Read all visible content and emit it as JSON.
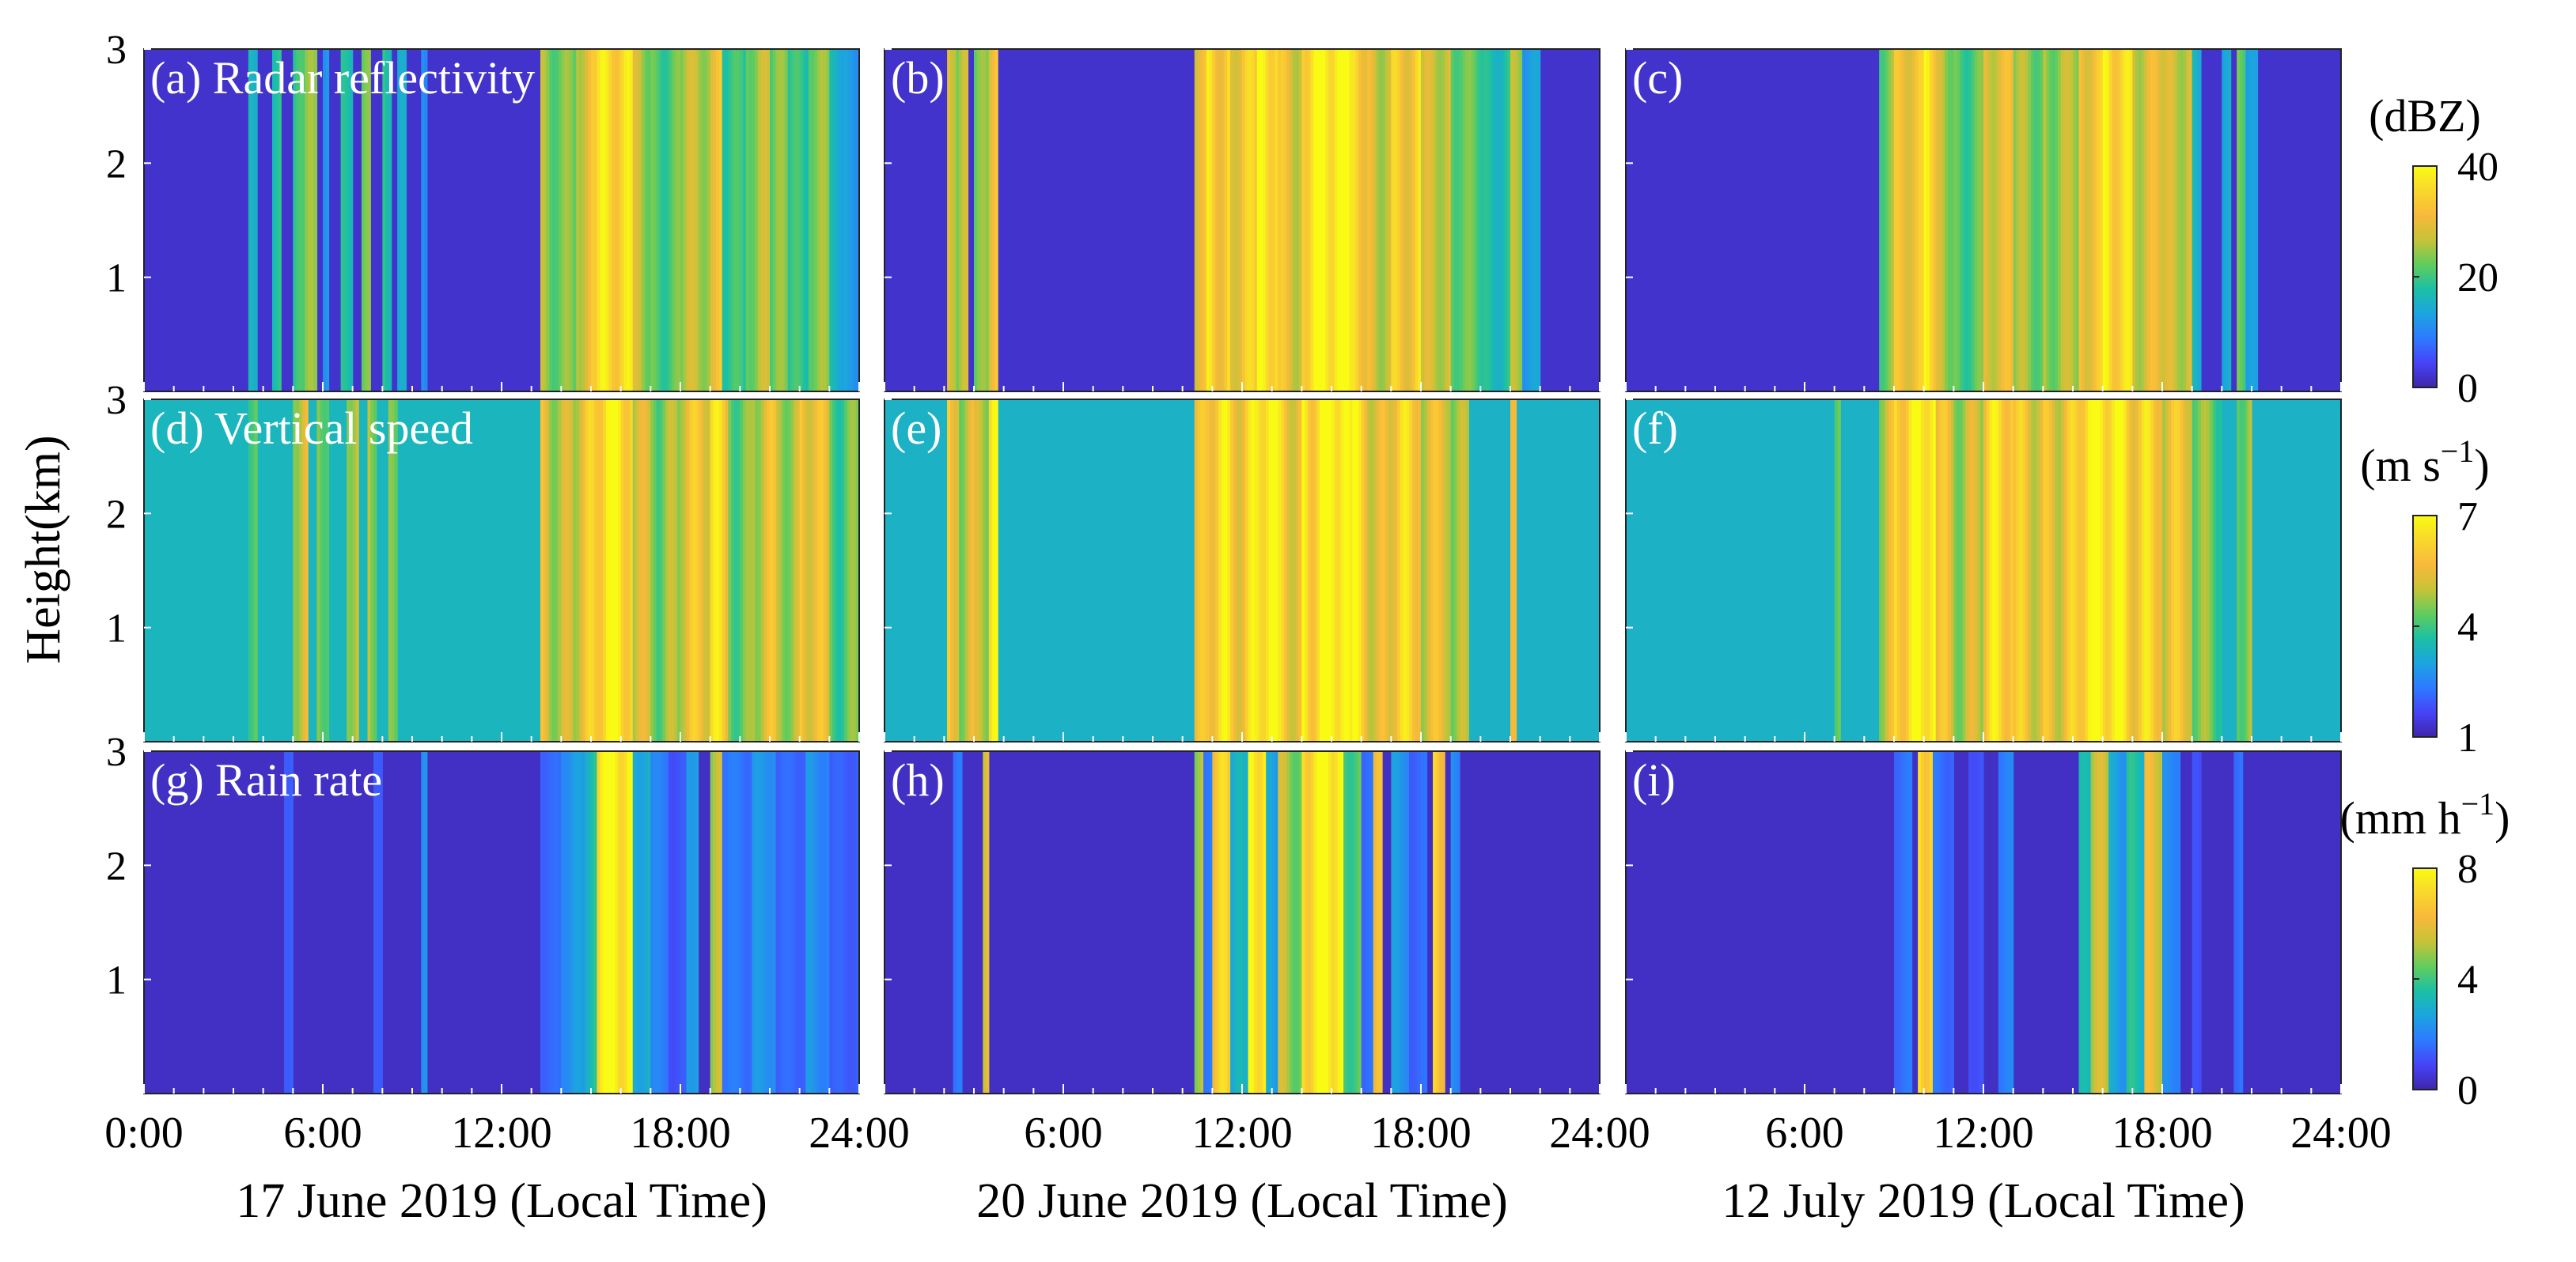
{
  "figure": {
    "ylabel": "Height(km)",
    "x_tick_labels_first": [
      "0:00",
      "6:00",
      "12:00",
      "18:00",
      "24:00"
    ],
    "x_tick_labels_next": [
      "6:00",
      "12:00",
      "18:00",
      "24:00"
    ],
    "column_titles": [
      "17 June 2019 (Local Time)",
      "20 June 2019 (Local Time)",
      "12 July 2019 (Local Time)"
    ],
    "y_ticks": [
      1,
      2,
      3
    ],
    "colorbars": [
      {
        "unit": "(dBZ)",
        "ticks": [
          0,
          20,
          40
        ],
        "range": [
          0,
          40
        ]
      },
      {
        "unit": "(m s",
        "unit_exp": "−1",
        "unit_close": ")",
        "ticks": [
          1,
          4,
          7
        ],
        "range": [
          1,
          7
        ]
      },
      {
        "unit": "(mm h",
        "unit_exp": "−1",
        "unit_close": ")",
        "ticks": [
          0,
          4,
          8
        ],
        "range": [
          0,
          8
        ]
      }
    ],
    "colormap": [
      "#3e26a8",
      "#4743f8",
      "#2d7aff",
      "#1ca4e0",
      "#1bc0a5",
      "#61cc5d",
      "#c6c338",
      "#f8b93b",
      "#f9d72c",
      "#f9fb14"
    ]
  },
  "chart_data": [
    {
      "panel": "a",
      "label": "(a) Radar reflectivity",
      "type": "heatmap",
      "variable": "Radar reflectivity",
      "units": "dBZ",
      "date": "17 June 2019",
      "x": "time (h, local)",
      "xlim": [
        0,
        24
      ],
      "ylim": [
        0,
        3
      ],
      "clim": [
        0,
        40
      ],
      "background": 2,
      "cell_hours": 0.1,
      "bands": [
        [
          3.5,
          3.8,
          14
        ],
        [
          4.3,
          4.6,
          18
        ],
        [
          5.0,
          5.4,
          20
        ],
        [
          5.4,
          5.8,
          24
        ],
        [
          6.0,
          6.2,
          12
        ],
        [
          6.6,
          7.0,
          16
        ],
        [
          7.3,
          7.6,
          22
        ],
        [
          8.0,
          8.3,
          20
        ],
        [
          8.5,
          8.8,
          14
        ],
        [
          9.3,
          9.5,
          10
        ],
        [
          13.3,
          14.5,
          24
        ],
        [
          14.5,
          15.2,
          30
        ],
        [
          15.2,
          16.4,
          34
        ],
        [
          16.4,
          17.0,
          26
        ],
        [
          17.0,
          18.0,
          22
        ],
        [
          18.0,
          19.0,
          25
        ],
        [
          19.0,
          19.4,
          30
        ],
        [
          19.4,
          20.2,
          20
        ],
        [
          20.2,
          21.0,
          26
        ],
        [
          21.0,
          21.6,
          22
        ],
        [
          21.6,
          22.3,
          18
        ],
        [
          22.3,
          23.0,
          24
        ],
        [
          23.0,
          23.6,
          16
        ],
        [
          23.6,
          24.0,
          12
        ]
      ]
    },
    {
      "panel": "b",
      "label": "(b)",
      "type": "heatmap",
      "variable": "Radar reflectivity",
      "units": "dBZ",
      "date": "20 June 2019",
      "x": "time (h, local)",
      "xlim": [
        0,
        24
      ],
      "ylim": [
        0,
        3
      ],
      "clim": [
        0,
        40
      ],
      "background": 2,
      "cell_hours": 0.1,
      "bands": [
        [
          2.1,
          2.4,
          32
        ],
        [
          2.4,
          2.8,
          26
        ],
        [
          3.0,
          3.5,
          22
        ],
        [
          3.5,
          3.8,
          30
        ],
        [
          10.4,
          10.8,
          30
        ],
        [
          10.8,
          11.6,
          36
        ],
        [
          11.6,
          12.5,
          32
        ],
        [
          12.5,
          13.2,
          36
        ],
        [
          13.2,
          14.0,
          30
        ],
        [
          14.0,
          15.6,
          40
        ],
        [
          15.6,
          16.2,
          32
        ],
        [
          16.2,
          17.0,
          28
        ],
        [
          17.0,
          18.0,
          34
        ],
        [
          18.0,
          19.0,
          26
        ],
        [
          19.0,
          20.0,
          22
        ],
        [
          20.0,
          21.0,
          18
        ],
        [
          21.0,
          21.4,
          24
        ],
        [
          21.4,
          22.0,
          12
        ]
      ]
    },
    {
      "panel": "c",
      "label": "(c)",
      "type": "heatmap",
      "variable": "Radar reflectivity",
      "units": "dBZ",
      "date": "12 July 2019",
      "x": "time (h, local)",
      "xlim": [
        0,
        24
      ],
      "ylim": [
        0,
        3
      ],
      "clim": [
        0,
        40
      ],
      "background": 2,
      "cell_hours": 0.1,
      "bands": [
        [
          8.5,
          9.0,
          24
        ],
        [
          9.0,
          10.0,
          30
        ],
        [
          10.0,
          10.4,
          36
        ],
        [
          10.4,
          11.0,
          26
        ],
        [
          11.0,
          12.0,
          22
        ],
        [
          12.0,
          13.0,
          28
        ],
        [
          13.0,
          14.0,
          24
        ],
        [
          14.0,
          15.2,
          26
        ],
        [
          15.2,
          16.0,
          30
        ],
        [
          16.0,
          17.0,
          36
        ],
        [
          17.0,
          18.0,
          30
        ],
        [
          18.0,
          19.0,
          26
        ],
        [
          19.0,
          19.3,
          14
        ],
        [
          20.0,
          20.3,
          16
        ],
        [
          20.5,
          20.8,
          22
        ],
        [
          20.8,
          21.2,
          12
        ]
      ]
    },
    {
      "panel": "d",
      "label": "(d) Vertical speed",
      "type": "heatmap",
      "variable": "Vertical speed",
      "units": "m s−1",
      "date": "17 June 2019",
      "x": "time (h, local)",
      "xlim": [
        0,
        24
      ],
      "ylim": [
        0,
        3
      ],
      "clim": [
        1,
        7
      ],
      "background": 3.4,
      "cell_hours": 0.1,
      "bands": [
        [
          3.5,
          3.8,
          4.2
        ],
        [
          5.0,
          5.5,
          5.5
        ],
        [
          5.8,
          6.2,
          4.6
        ],
        [
          6.8,
          7.2,
          4.8
        ],
        [
          7.5,
          7.8,
          5.0
        ],
        [
          8.2,
          8.5,
          4.4
        ],
        [
          13.3,
          14.5,
          5.2
        ],
        [
          14.5,
          15.2,
          5.8
        ],
        [
          15.2,
          16.4,
          6.4
        ],
        [
          16.4,
          17.2,
          5.2
        ],
        [
          17.2,
          18.0,
          4.8
        ],
        [
          18.0,
          19.0,
          5.4
        ],
        [
          19.0,
          19.6,
          6.0
        ],
        [
          19.6,
          20.4,
          4.6
        ],
        [
          20.4,
          21.2,
          5.4
        ],
        [
          21.2,
          22.0,
          4.6
        ],
        [
          22.0,
          23.0,
          5.6
        ],
        [
          23.0,
          24.0,
          4.4
        ]
      ]
    },
    {
      "panel": "e",
      "label": "(e)",
      "type": "heatmap",
      "variable": "Vertical speed",
      "units": "m s−1",
      "date": "20 June 2019",
      "x": "time (h, local)",
      "xlim": [
        0,
        24
      ],
      "ylim": [
        0,
        3
      ],
      "clim": [
        1,
        7
      ],
      "background": 3.3,
      "cell_hours": 0.1,
      "bands": [
        [
          2.1,
          2.5,
          6.4
        ],
        [
          2.5,
          3.0,
          5.2
        ],
        [
          3.0,
          3.5,
          4.8
        ],
        [
          3.5,
          3.8,
          6.0
        ],
        [
          10.4,
          10.8,
          5.6
        ],
        [
          10.8,
          11.6,
          6.6
        ],
        [
          11.6,
          12.5,
          6.0
        ],
        [
          12.5,
          13.2,
          6.6
        ],
        [
          13.2,
          14.0,
          5.8
        ],
        [
          14.0,
          15.6,
          7.0
        ],
        [
          15.6,
          16.2,
          6.0
        ],
        [
          16.2,
          17.0,
          5.4
        ],
        [
          17.0,
          18.0,
          6.4
        ],
        [
          18.0,
          19.0,
          5.2
        ],
        [
          19.0,
          19.6,
          4.6
        ],
        [
          21.0,
          21.2,
          5.0
        ]
      ]
    },
    {
      "panel": "f",
      "label": "(f)",
      "type": "heatmap",
      "variable": "Vertical speed",
      "units": "m s−1",
      "date": "12 July 2019",
      "x": "time (h, local)",
      "xlim": [
        0,
        24
      ],
      "ylim": [
        0,
        3
      ],
      "clim": [
        1,
        7
      ],
      "background": 3.3,
      "cell_hours": 0.1,
      "bands": [
        [
          7.0,
          7.2,
          4.4
        ],
        [
          8.5,
          9.0,
          5.4
        ],
        [
          9.0,
          10.0,
          6.2
        ],
        [
          10.0,
          10.4,
          6.8
        ],
        [
          10.4,
          11.0,
          5.6
        ],
        [
          11.0,
          12.0,
          5.2
        ],
        [
          12.0,
          13.0,
          6.0
        ],
        [
          13.0,
          14.0,
          5.6
        ],
        [
          14.0,
          15.2,
          5.8
        ],
        [
          15.2,
          16.0,
          6.4
        ],
        [
          16.0,
          17.0,
          6.6
        ],
        [
          17.0,
          18.0,
          6.4
        ],
        [
          18.0,
          19.0,
          5.4
        ],
        [
          19.0,
          20.0,
          4.4
        ],
        [
          20.5,
          21.0,
          4.8
        ]
      ]
    },
    {
      "panel": "g",
      "label": "(g) Rain rate",
      "type": "heatmap",
      "variable": "Rain rate",
      "units": "mm h−1",
      "date": "17 June 2019",
      "x": "time (h, local)",
      "xlim": [
        0,
        24
      ],
      "ylim": [
        0,
        3
      ],
      "clim": [
        0,
        8
      ],
      "background": 0.3,
      "cell_hours": 0.1,
      "bands": [
        [
          4.7,
          5.0,
          1.5
        ],
        [
          7.7,
          8.0,
          1.2
        ],
        [
          9.3,
          9.5,
          2.0
        ],
        [
          13.3,
          14.0,
          1.5
        ],
        [
          14.0,
          14.8,
          2.5
        ],
        [
          14.8,
          15.2,
          3.5
        ],
        [
          15.2,
          16.4,
          7.5
        ],
        [
          16.4,
          17.0,
          3.0
        ],
        [
          17.0,
          17.6,
          2.0
        ],
        [
          17.6,
          18.2,
          1.2
        ],
        [
          18.2,
          18.6,
          2.6
        ],
        [
          19.0,
          19.4,
          5.0
        ],
        [
          19.4,
          20.4,
          1.8
        ],
        [
          20.4,
          21.2,
          2.4
        ],
        [
          21.2,
          22.2,
          1.4
        ],
        [
          22.2,
          23.0,
          2.2
        ],
        [
          23.0,
          24.0,
          1.4
        ]
      ]
    },
    {
      "panel": "h",
      "label": "(h)",
      "type": "heatmap",
      "variable": "Rain rate",
      "units": "mm h−1",
      "date": "20 June 2019",
      "x": "time (h, local)",
      "xlim": [
        0,
        24
      ],
      "ylim": [
        0,
        3
      ],
      "clim": [
        0,
        8
      ],
      "background": 0.3,
      "cell_hours": 0.1,
      "bands": [
        [
          2.3,
          2.6,
          1.8
        ],
        [
          3.3,
          3.5,
          6.0
        ],
        [
          10.4,
          10.7,
          5.0
        ],
        [
          10.7,
          11.0,
          2.0
        ],
        [
          11.0,
          11.6,
          7.0
        ],
        [
          11.6,
          12.2,
          3.0
        ],
        [
          12.2,
          12.8,
          7.5
        ],
        [
          12.8,
          13.2,
          2.5
        ],
        [
          13.2,
          14.0,
          5.0
        ],
        [
          14.0,
          15.4,
          8.0
        ],
        [
          15.4,
          16.0,
          4.0
        ],
        [
          16.0,
          16.4,
          1.5
        ],
        [
          16.4,
          16.7,
          6.0
        ],
        [
          17.0,
          17.6,
          2.5
        ],
        [
          17.6,
          18.2,
          1.5
        ],
        [
          18.4,
          18.8,
          6.5
        ],
        [
          19.0,
          19.3,
          2.0
        ]
      ]
    },
    {
      "panel": "i",
      "label": "(i)",
      "type": "heatmap",
      "variable": "Rain rate",
      "units": "mm h−1",
      "date": "12 July 2019",
      "x": "time (h, local)",
      "xlim": [
        0,
        24
      ],
      "ylim": [
        0,
        3
      ],
      "clim": [
        0,
        8
      ],
      "background": 0.3,
      "cell_hours": 0.1,
      "bands": [
        [
          9.0,
          9.6,
          1.6
        ],
        [
          9.8,
          10.3,
          7.0
        ],
        [
          10.3,
          11.0,
          1.6
        ],
        [
          11.5,
          12.0,
          1.2
        ],
        [
          12.5,
          13.0,
          1.8
        ],
        [
          15.2,
          15.6,
          3.0
        ],
        [
          15.6,
          16.2,
          5.0
        ],
        [
          16.2,
          16.8,
          2.6
        ],
        [
          16.8,
          17.4,
          3.6
        ],
        [
          17.4,
          18.0,
          6.0
        ],
        [
          18.0,
          18.6,
          2.0
        ],
        [
          19.0,
          19.3,
          1.0
        ],
        [
          20.4,
          20.7,
          1.6
        ]
      ]
    }
  ]
}
